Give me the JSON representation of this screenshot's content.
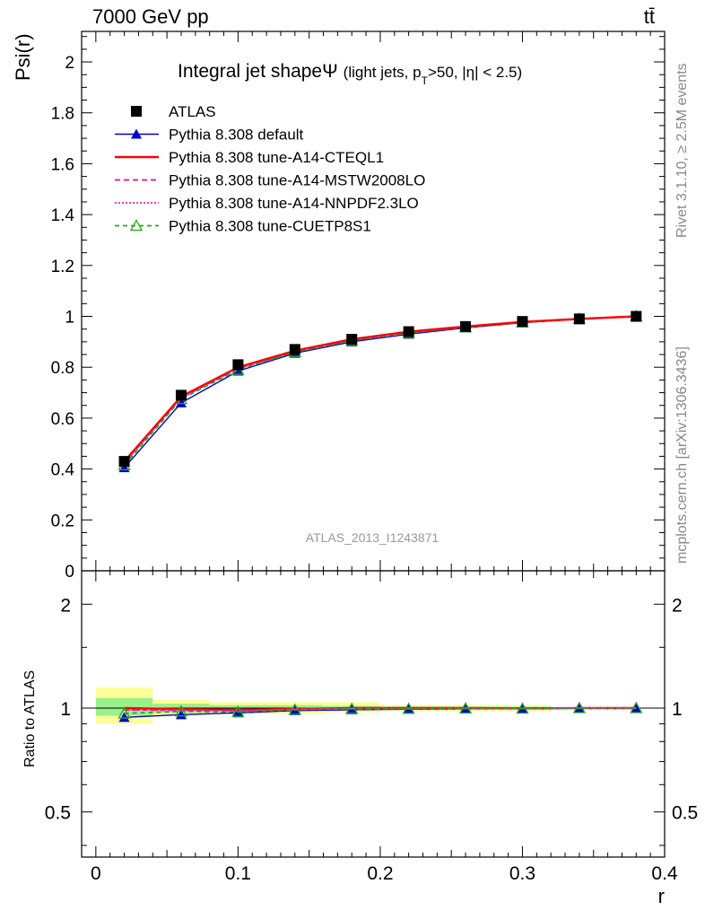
{
  "header": {
    "process": "7000 GeV pp",
    "final_state": "tt̄"
  },
  "side_labels": {
    "rivet": "Rivet 3.1.10, ≥ 2.5M events",
    "source": "mcplots.cern.ch [arXiv:1306.3436]"
  },
  "analysis_id": "ATLAS_2013_I1243871",
  "chart_data": [
    {
      "type": "line",
      "panel": "main",
      "title": "Integral jet shape",
      "title_symbol": "Ψ",
      "title_subtitle": "(light jets, p_T>50, |η| < 2.5)",
      "subtitle_parts": {
        "open": "(light jets, p",
        "sub": "T",
        "close": ">50, |η| < 2.5)"
      },
      "ylabel": "Psi(r)",
      "xlabel": "",
      "xlim": [
        -0.01,
        0.4
      ],
      "ylim": [
        0,
        2.12
      ],
      "y_ticks": [
        "0",
        "0.2",
        "0.4",
        "0.6",
        "0.8",
        "1",
        "1.2",
        "1.4",
        "1.6",
        "1.8",
        "2"
      ],
      "y_tick_values": [
        0,
        0.2,
        0.4,
        0.6,
        0.8,
        1.0,
        1.2,
        1.4,
        1.6,
        1.8,
        2.0
      ],
      "x": [
        0.02,
        0.06,
        0.1,
        0.14,
        0.18,
        0.22,
        0.26,
        0.3,
        0.34,
        0.38
      ],
      "legend": "top-left",
      "series": [
        {
          "name": "ATLAS",
          "style": "data",
          "color": "#000000",
          "values": [
            0.43,
            0.69,
            0.81,
            0.87,
            0.91,
            0.94,
            0.96,
            0.98,
            0.99,
            1.0
          ]
        },
        {
          "name": "Pythia 8.308 default",
          "style": "solid-triangle",
          "color": "#0000cc",
          "values": [
            0.405,
            0.66,
            0.785,
            0.855,
            0.9,
            0.93,
            0.955,
            0.975,
            0.99,
            1.0
          ]
        },
        {
          "name": "Pythia 8.308 tune-A14-CTEQL1",
          "style": "solid",
          "color": "#ff0000",
          "values": [
            0.43,
            0.685,
            0.8,
            0.865,
            0.91,
            0.94,
            0.96,
            0.978,
            0.99,
            1.0
          ]
        },
        {
          "name": "Pythia 8.308 tune-A14-MSTW2008LO",
          "style": "dashed",
          "color": "#ee1177",
          "values": [
            0.425,
            0.68,
            0.795,
            0.86,
            0.905,
            0.935,
            0.958,
            0.977,
            0.99,
            1.0
          ]
        },
        {
          "name": "Pythia 8.308 tune-A14-NNPDF2.3LO",
          "style": "dotted",
          "color": "#ee22cc",
          "values": [
            0.425,
            0.68,
            0.795,
            0.862,
            0.907,
            0.937,
            0.959,
            0.977,
            0.99,
            1.0
          ]
        },
        {
          "name": "Pythia 8.308 tune-CUETP8S1",
          "style": "dashed-open-triangle",
          "color": "#22aa22",
          "values": [
            0.415,
            0.675,
            0.79,
            0.86,
            0.905,
            0.935,
            0.957,
            0.976,
            0.99,
            1.0
          ]
        }
      ]
    },
    {
      "type": "line",
      "panel": "ratio",
      "ylabel": "Ratio to ATLAS",
      "xlabel": "r",
      "xlim": [
        -0.01,
        0.4
      ],
      "ylim": [
        0.37,
        2.5
      ],
      "log_y": true,
      "y_ticks_left": [
        "0.5",
        "1",
        "2"
      ],
      "y_ticks_right": [
        "0.5",
        "1",
        "2"
      ],
      "y_tick_values": [
        0.5,
        1,
        2
      ],
      "x_ticks": [
        "0",
        "0.1",
        "0.2",
        "0.3",
        "0.4"
      ],
      "x_tick_values": [
        0,
        0.1,
        0.2,
        0.3,
        0.4
      ],
      "x": [
        0.02,
        0.06,
        0.1,
        0.14,
        0.18,
        0.22,
        0.26,
        0.3,
        0.34,
        0.38
      ],
      "uncertainty_bands": [
        {
          "x_range": [
            0.0,
            0.04
          ],
          "inner": [
            0.95,
            1.07
          ],
          "outer": [
            0.9,
            1.15
          ]
        },
        {
          "x_range": [
            0.04,
            0.08
          ],
          "inner": [
            0.97,
            1.03
          ],
          "outer": [
            0.95,
            1.06
          ]
        },
        {
          "x_range": [
            0.08,
            0.16
          ],
          "inner": [
            0.98,
            1.02
          ],
          "outer": [
            0.96,
            1.04
          ]
        },
        {
          "x_range": [
            0.16,
            0.2
          ],
          "inner": [
            0.985,
            1.015
          ],
          "outer": [
            0.97,
            1.04
          ]
        },
        {
          "x_range": [
            0.2,
            0.32
          ],
          "inner": [
            0.99,
            1.01
          ],
          "outer": [
            0.98,
            1.02
          ]
        }
      ],
      "series": [
        {
          "name": "Pythia 8.308 default",
          "color": "#0000cc",
          "values": [
            0.94,
            0.957,
            0.969,
            0.983,
            0.989,
            0.992,
            0.995,
            0.995,
            1.0,
            1.0
          ]
        },
        {
          "name": "Pythia 8.308 tune-A14-CTEQL1",
          "color": "#ff0000",
          "values": [
            1.0,
            0.993,
            0.988,
            0.994,
            1.0,
            1.0,
            1.0,
            0.998,
            1.0,
            1.0
          ]
        },
        {
          "name": "Pythia 8.308 tune-A14-MSTW2008LO",
          "color": "#ee1177",
          "values": [
            0.988,
            0.986,
            0.981,
            0.989,
            0.995,
            0.995,
            0.998,
            0.997,
            1.0,
            1.0
          ]
        },
        {
          "name": "Pythia 8.308 tune-A14-NNPDF2.3LO",
          "color": "#ee22cc",
          "values": [
            0.988,
            0.986,
            0.981,
            0.991,
            0.997,
            0.997,
            0.999,
            0.997,
            1.0,
            1.0
          ]
        },
        {
          "name": "Pythia 8.308 tune-CUETP8S1",
          "color": "#22aa22",
          "values": [
            0.965,
            0.978,
            0.975,
            0.989,
            0.995,
            0.995,
            0.997,
            0.996,
            1.0,
            1.0
          ]
        }
      ]
    }
  ]
}
